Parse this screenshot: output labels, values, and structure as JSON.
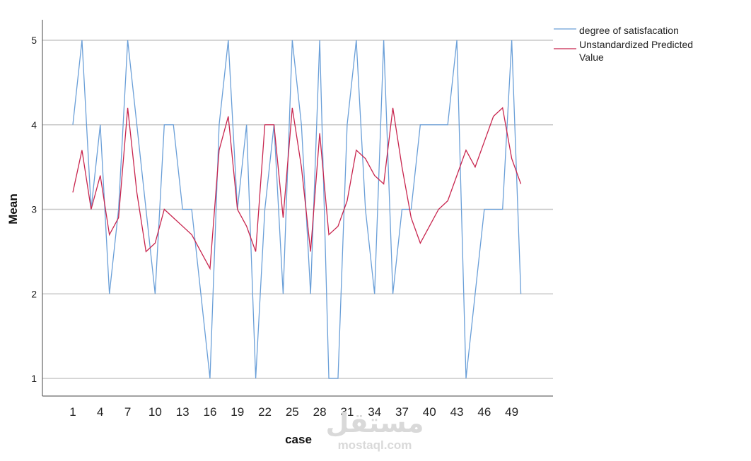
{
  "chart_data": {
    "type": "line",
    "title": "",
    "xlabel": "case",
    "ylabel": "Mean",
    "x": [
      1,
      2,
      3,
      4,
      5,
      6,
      7,
      8,
      9,
      10,
      11,
      12,
      13,
      14,
      15,
      16,
      17,
      18,
      19,
      20,
      21,
      22,
      23,
      24,
      25,
      26,
      27,
      28,
      29,
      30,
      31,
      32,
      33,
      34,
      35,
      36,
      37,
      38,
      39,
      40,
      41,
      42,
      43,
      44,
      45,
      46,
      47,
      48,
      49,
      50
    ],
    "x_tick_labels": [
      "1",
      "4",
      "7",
      "10",
      "13",
      "16",
      "19",
      "22",
      "25",
      "28",
      "31",
      "34",
      "37",
      "40",
      "43",
      "46",
      "49"
    ],
    "y_ticks": [
      1,
      2,
      3,
      4,
      5
    ],
    "ylim": [
      0.8,
      5.3
    ],
    "grid": "horizontal",
    "legend_position": "top-right",
    "series": [
      {
        "name": "degree of satisfacation",
        "color": "#6a9fd8",
        "values": [
          4,
          5,
          3,
          4,
          2,
          3,
          5,
          4,
          3,
          2,
          4,
          4,
          3,
          3,
          2,
          1,
          4,
          5,
          3,
          4,
          1,
          3,
          4,
          2,
          5,
          4,
          2,
          5,
          1,
          1,
          4,
          5,
          3,
          2,
          5,
          2,
          3,
          3,
          4,
          4,
          4,
          4,
          5,
          1,
          2,
          3,
          3,
          3,
          5,
          2
        ]
      },
      {
        "name": "Unstandardized Predicted Value",
        "color": "#c8254e",
        "values": [
          3.2,
          3.7,
          3.0,
          3.4,
          2.7,
          2.9,
          4.2,
          3.2,
          2.5,
          2.6,
          3.0,
          2.9,
          2.8,
          2.7,
          2.5,
          2.3,
          3.7,
          4.1,
          3.0,
          2.8,
          2.5,
          4.0,
          4.0,
          2.9,
          4.2,
          3.5,
          2.5,
          3.9,
          2.7,
          2.8,
          3.1,
          3.7,
          3.6,
          3.4,
          3.3,
          4.2,
          3.5,
          2.9,
          2.6,
          2.8,
          3.0,
          3.1,
          3.4,
          3.7,
          3.5,
          3.8,
          4.1,
          4.2,
          3.6,
          3.3
        ]
      }
    ]
  },
  "legend": {
    "line1": "degree of satisfacation",
    "line2a": "Unstandardized Predicted",
    "line2b": "Value"
  },
  "watermark": {
    "arabic": "مستقل",
    "latin": "mostaql.com"
  }
}
